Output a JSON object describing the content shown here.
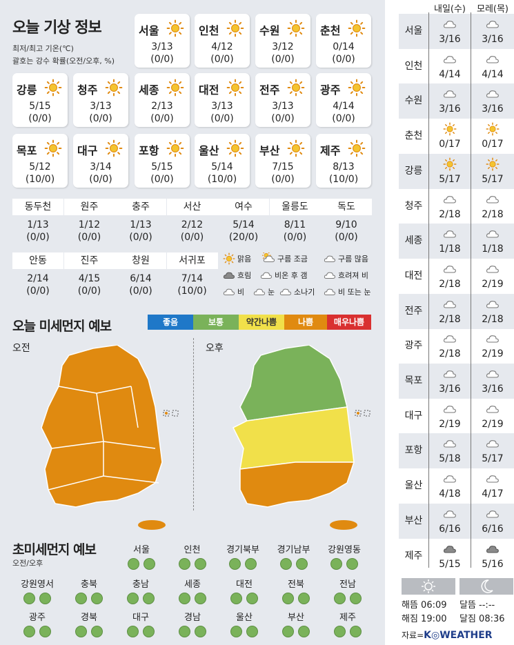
{
  "header": {
    "title": "오늘 기상 정보",
    "note1": "최저/최고 기온(℃)",
    "note2": "괄호는 강수 확률(오전/오후, %)"
  },
  "cities": [
    {
      "name": "서울",
      "temp": "3/13",
      "prec": "(0/0)",
      "icon": "sun-icon"
    },
    {
      "name": "인천",
      "temp": "4/12",
      "prec": "(0/0)",
      "icon": "sun-icon"
    },
    {
      "name": "수원",
      "temp": "3/12",
      "prec": "(0/0)",
      "icon": "sun-icon"
    },
    {
      "name": "춘천",
      "temp": "0/14",
      "prec": "(0/0)",
      "icon": "sun-icon"
    },
    {
      "name": "강릉",
      "temp": "5/15",
      "prec": "(0/0)",
      "icon": "sun-icon"
    },
    {
      "name": "청주",
      "temp": "3/13",
      "prec": "(0/0)",
      "icon": "sun-icon"
    },
    {
      "name": "세종",
      "temp": "2/13",
      "prec": "(0/0)",
      "icon": "sun-icon"
    },
    {
      "name": "대전",
      "temp": "3/13",
      "prec": "(0/0)",
      "icon": "sun-icon"
    },
    {
      "name": "전주",
      "temp": "3/13",
      "prec": "(0/0)",
      "icon": "sun-icon"
    },
    {
      "name": "광주",
      "temp": "4/14",
      "prec": "(0/0)",
      "icon": "sun-icon"
    },
    {
      "name": "목포",
      "temp": "5/12",
      "prec": "(10/0)",
      "icon": "sun-icon"
    },
    {
      "name": "대구",
      "temp": "3/14",
      "prec": "(0/0)",
      "icon": "sun-icon"
    },
    {
      "name": "포항",
      "temp": "5/15",
      "prec": "(0/0)",
      "icon": "sun-icon"
    },
    {
      "name": "울산",
      "temp": "5/14",
      "prec": "(10/0)",
      "icon": "sun-icon"
    },
    {
      "name": "부산",
      "temp": "7/15",
      "prec": "(0/0)",
      "icon": "sun-icon"
    },
    {
      "name": "제주",
      "temp": "8/13",
      "prec": "(10/0)",
      "icon": "sun-icon"
    }
  ],
  "small_cities": [
    {
      "name": "동두천",
      "temp": "1/13",
      "prec": "(0/0)"
    },
    {
      "name": "원주",
      "temp": "1/12",
      "prec": "(0/0)"
    },
    {
      "name": "충주",
      "temp": "1/13",
      "prec": "(0/0)"
    },
    {
      "name": "서산",
      "temp": "2/12",
      "prec": "(0/0)"
    },
    {
      "name": "여수",
      "temp": "5/14",
      "prec": "(20/0)"
    },
    {
      "name": "울릉도",
      "temp": "8/11",
      "prec": "(0/0)"
    },
    {
      "name": "독도",
      "temp": "9/10",
      "prec": "(0/0)"
    },
    {
      "name": "안동",
      "temp": "2/14",
      "prec": "(0/0)"
    },
    {
      "name": "진주",
      "temp": "4/15",
      "prec": "(0/0)"
    },
    {
      "name": "창원",
      "temp": "6/14",
      "prec": "(0/0)"
    },
    {
      "name": "서귀포",
      "temp": "7/14",
      "prec": "(10/0)"
    }
  ],
  "legend": [
    {
      "label": "맑음",
      "icon": "sun-icon"
    },
    {
      "label": "구름 조금",
      "icon": "sun-cloud-icon"
    },
    {
      "label": "구름 많음",
      "icon": "cloud-icon"
    },
    {
      "label": "흐림",
      "icon": "dark-cloud-icon"
    },
    {
      "label": "비온 후 갬",
      "icon": "rain-then-clear-icon"
    },
    {
      "label": "흐려져 비",
      "icon": "cloudy-then-rain-icon"
    },
    {
      "label": "비",
      "icon": "rain-icon"
    },
    {
      "label": "눈",
      "icon": "snow-icon"
    },
    {
      "label": "소나기",
      "icon": "shower-icon"
    },
    {
      "label": "비 또는 눈",
      "icon": "rain-or-snow-icon"
    }
  ],
  "dust": {
    "title": "오늘 미세먼지 예보",
    "am_label": "오전",
    "pm_label": "오후",
    "levels": [
      {
        "label": "좋음",
        "color": "#1f78c8"
      },
      {
        "label": "보통",
        "color": "#7ab25a"
      },
      {
        "label": "약간나쁨",
        "color": "#f1e04a"
      },
      {
        "label": "나쁨",
        "color": "#e08a10"
      },
      {
        "label": "매우나쁨",
        "color": "#d93030"
      }
    ]
  },
  "ultrafine": {
    "title": "초미세먼지 예보",
    "sub": "오전/오후",
    "regions": [
      "서울",
      "인천",
      "경기북부",
      "경기남부",
      "강원영동",
      "강원영서",
      "충북",
      "충남",
      "세종",
      "대전",
      "전북",
      "전남",
      "광주",
      "경북",
      "대구",
      "경남",
      "울산",
      "부산",
      "제주"
    ],
    "level": "보통"
  },
  "forecast": {
    "day1": "내일(수)",
    "day2": "모레(목)",
    "rows": [
      {
        "name": "서울",
        "icon1": "cloud-icon",
        "t1": "3/16",
        "icon2": "cloud-icon",
        "t2": "3/16"
      },
      {
        "name": "인천",
        "icon1": "cloud-icon",
        "t1": "4/14",
        "icon2": "cloud-icon",
        "t2": "4/14"
      },
      {
        "name": "수원",
        "icon1": "cloud-icon",
        "t1": "3/16",
        "icon2": "cloud-icon",
        "t2": "3/16"
      },
      {
        "name": "춘천",
        "icon1": "sun-icon",
        "t1": "0/17",
        "icon2": "sun-icon",
        "t2": "0/17"
      },
      {
        "name": "강릉",
        "icon1": "sun-icon",
        "t1": "5/17",
        "icon2": "sun-icon",
        "t2": "5/17"
      },
      {
        "name": "청주",
        "icon1": "cloud-icon",
        "t1": "2/18",
        "icon2": "cloud-icon",
        "t2": "2/18"
      },
      {
        "name": "세종",
        "icon1": "cloud-icon",
        "t1": "1/18",
        "icon2": "cloud-icon",
        "t2": "1/18"
      },
      {
        "name": "대전",
        "icon1": "cloud-icon",
        "t1": "2/18",
        "icon2": "cloud-icon",
        "t2": "2/19"
      },
      {
        "name": "전주",
        "icon1": "cloud-icon",
        "t1": "2/18",
        "icon2": "cloud-icon",
        "t2": "2/18"
      },
      {
        "name": "광주",
        "icon1": "cloud-icon",
        "t1": "2/18",
        "icon2": "cloud-icon",
        "t2": "2/19"
      },
      {
        "name": "목포",
        "icon1": "cloud-icon",
        "t1": "3/16",
        "icon2": "cloud-icon",
        "t2": "3/16"
      },
      {
        "name": "대구",
        "icon1": "cloud-icon",
        "t1": "2/19",
        "icon2": "cloud-icon",
        "t2": "2/19"
      },
      {
        "name": "포항",
        "icon1": "cloud-icon",
        "t1": "5/18",
        "icon2": "cloud-icon",
        "t2": "5/17"
      },
      {
        "name": "울산",
        "icon1": "cloud-icon",
        "t1": "4/18",
        "icon2": "cloud-icon",
        "t2": "4/17"
      },
      {
        "name": "부산",
        "icon1": "cloud-icon",
        "t1": "6/16",
        "icon2": "cloud-icon",
        "t2": "6/16"
      },
      {
        "name": "제주",
        "icon1": "dark-cloud-icon",
        "t1": "5/15",
        "icon2": "dark-cloud-icon",
        "t2": "5/16"
      }
    ]
  },
  "astro": {
    "sunrise": "해뜸 06:09",
    "sunset": "해짐 19:00",
    "moonrise": "달뜸 --:--",
    "moonset": "달짐 08:36"
  },
  "source": {
    "prefix": "자료=",
    "brand": "K◎WEATHER"
  }
}
